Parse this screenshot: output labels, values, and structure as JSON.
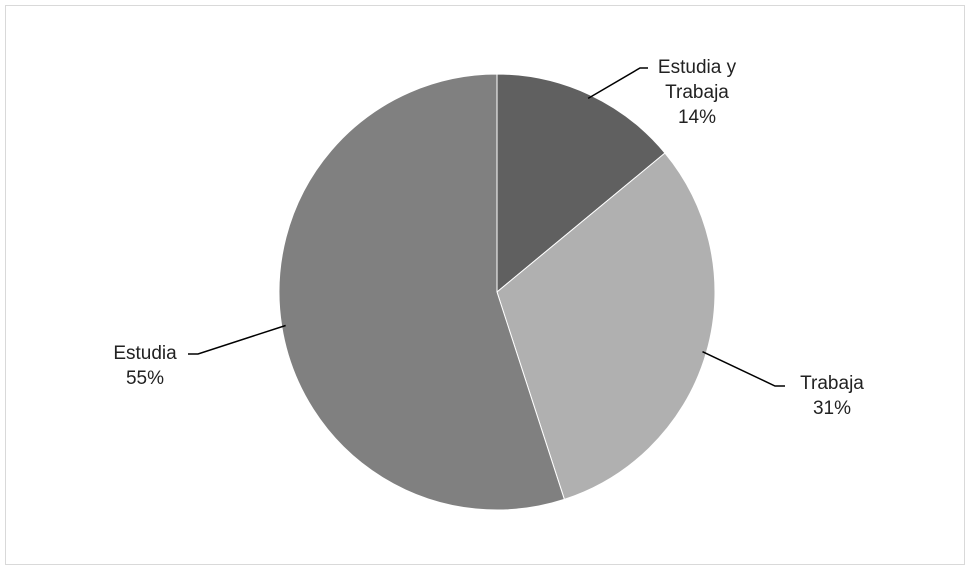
{
  "chart_data": {
    "type": "pie",
    "categories": [
      "Estudia y Trabaja",
      "Trabaja",
      "Estudia"
    ],
    "values": [
      14,
      31,
      55
    ],
    "value_labels": [
      "14%",
      "31%",
      "55%"
    ],
    "colors": [
      "#606060",
      "#b0b0b0",
      "#808080"
    ]
  }
}
